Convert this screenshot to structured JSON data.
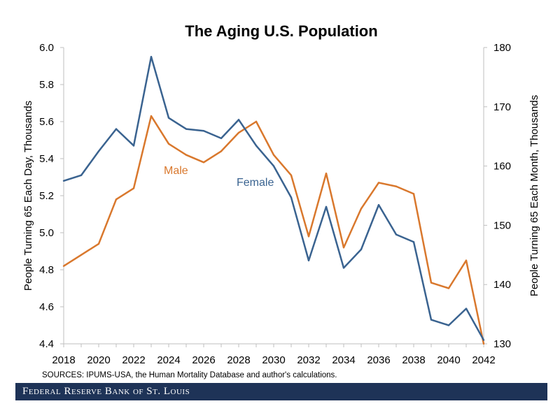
{
  "chart_data": {
    "type": "line",
    "title": "The Aging U.S. Population",
    "ylabel": "People Turning 65 Each Day, Thousands",
    "y2label": "People Turning 65 Each Month, Thousands",
    "xlim": [
      2018,
      2042
    ],
    "ylim": [
      4.4,
      6.0
    ],
    "y2lim": [
      130,
      180
    ],
    "yticks": [
      "6.0",
      "5.8",
      "5.6",
      "5.4",
      "5.2",
      "5.0",
      "4.8",
      "4.6",
      "4.4"
    ],
    "y2ticks": [
      "180",
      "170",
      "160",
      "150",
      "140",
      "130"
    ],
    "xticks": [
      "2018",
      "2020",
      "2022",
      "2024",
      "2026",
      "2028",
      "2030",
      "2032",
      "2034",
      "2036",
      "2038",
      "2040",
      "2042"
    ],
    "grid": false,
    "legend": "inline labels",
    "x": [
      2018,
      2019,
      2020,
      2021,
      2022,
      2023,
      2024,
      2025,
      2026,
      2027,
      2028,
      2029,
      2030,
      2031,
      2032,
      2033,
      2034,
      2035,
      2036,
      2037,
      2038,
      2039,
      2040,
      2041,
      2042
    ],
    "series": [
      {
        "name": "Male",
        "color": "#d9782d",
        "values": [
          4.82,
          4.88,
          4.94,
          5.18,
          5.24,
          5.63,
          5.48,
          5.42,
          5.38,
          5.44,
          5.54,
          5.6,
          5.42,
          5.31,
          4.98,
          5.32,
          4.92,
          5.13,
          5.27,
          5.25,
          5.21,
          4.73,
          4.7,
          4.85,
          4.4
        ]
      },
      {
        "name": "Female",
        "color": "#3a6390",
        "values": [
          5.28,
          5.31,
          5.44,
          5.56,
          5.47,
          5.95,
          5.62,
          5.56,
          5.55,
          5.51,
          5.61,
          5.47,
          5.36,
          5.19,
          4.85,
          5.14,
          4.81,
          4.91,
          5.15,
          4.99,
          4.95,
          4.53,
          4.5,
          4.59,
          4.42
        ]
      }
    ]
  },
  "source_note": "SOURCES: IPUMS-USA,  the Human Mortality Database and author's calculations.",
  "footer": {
    "brand": "Federal Reserve Bank of St. Louis",
    "color": "#1e3357"
  }
}
